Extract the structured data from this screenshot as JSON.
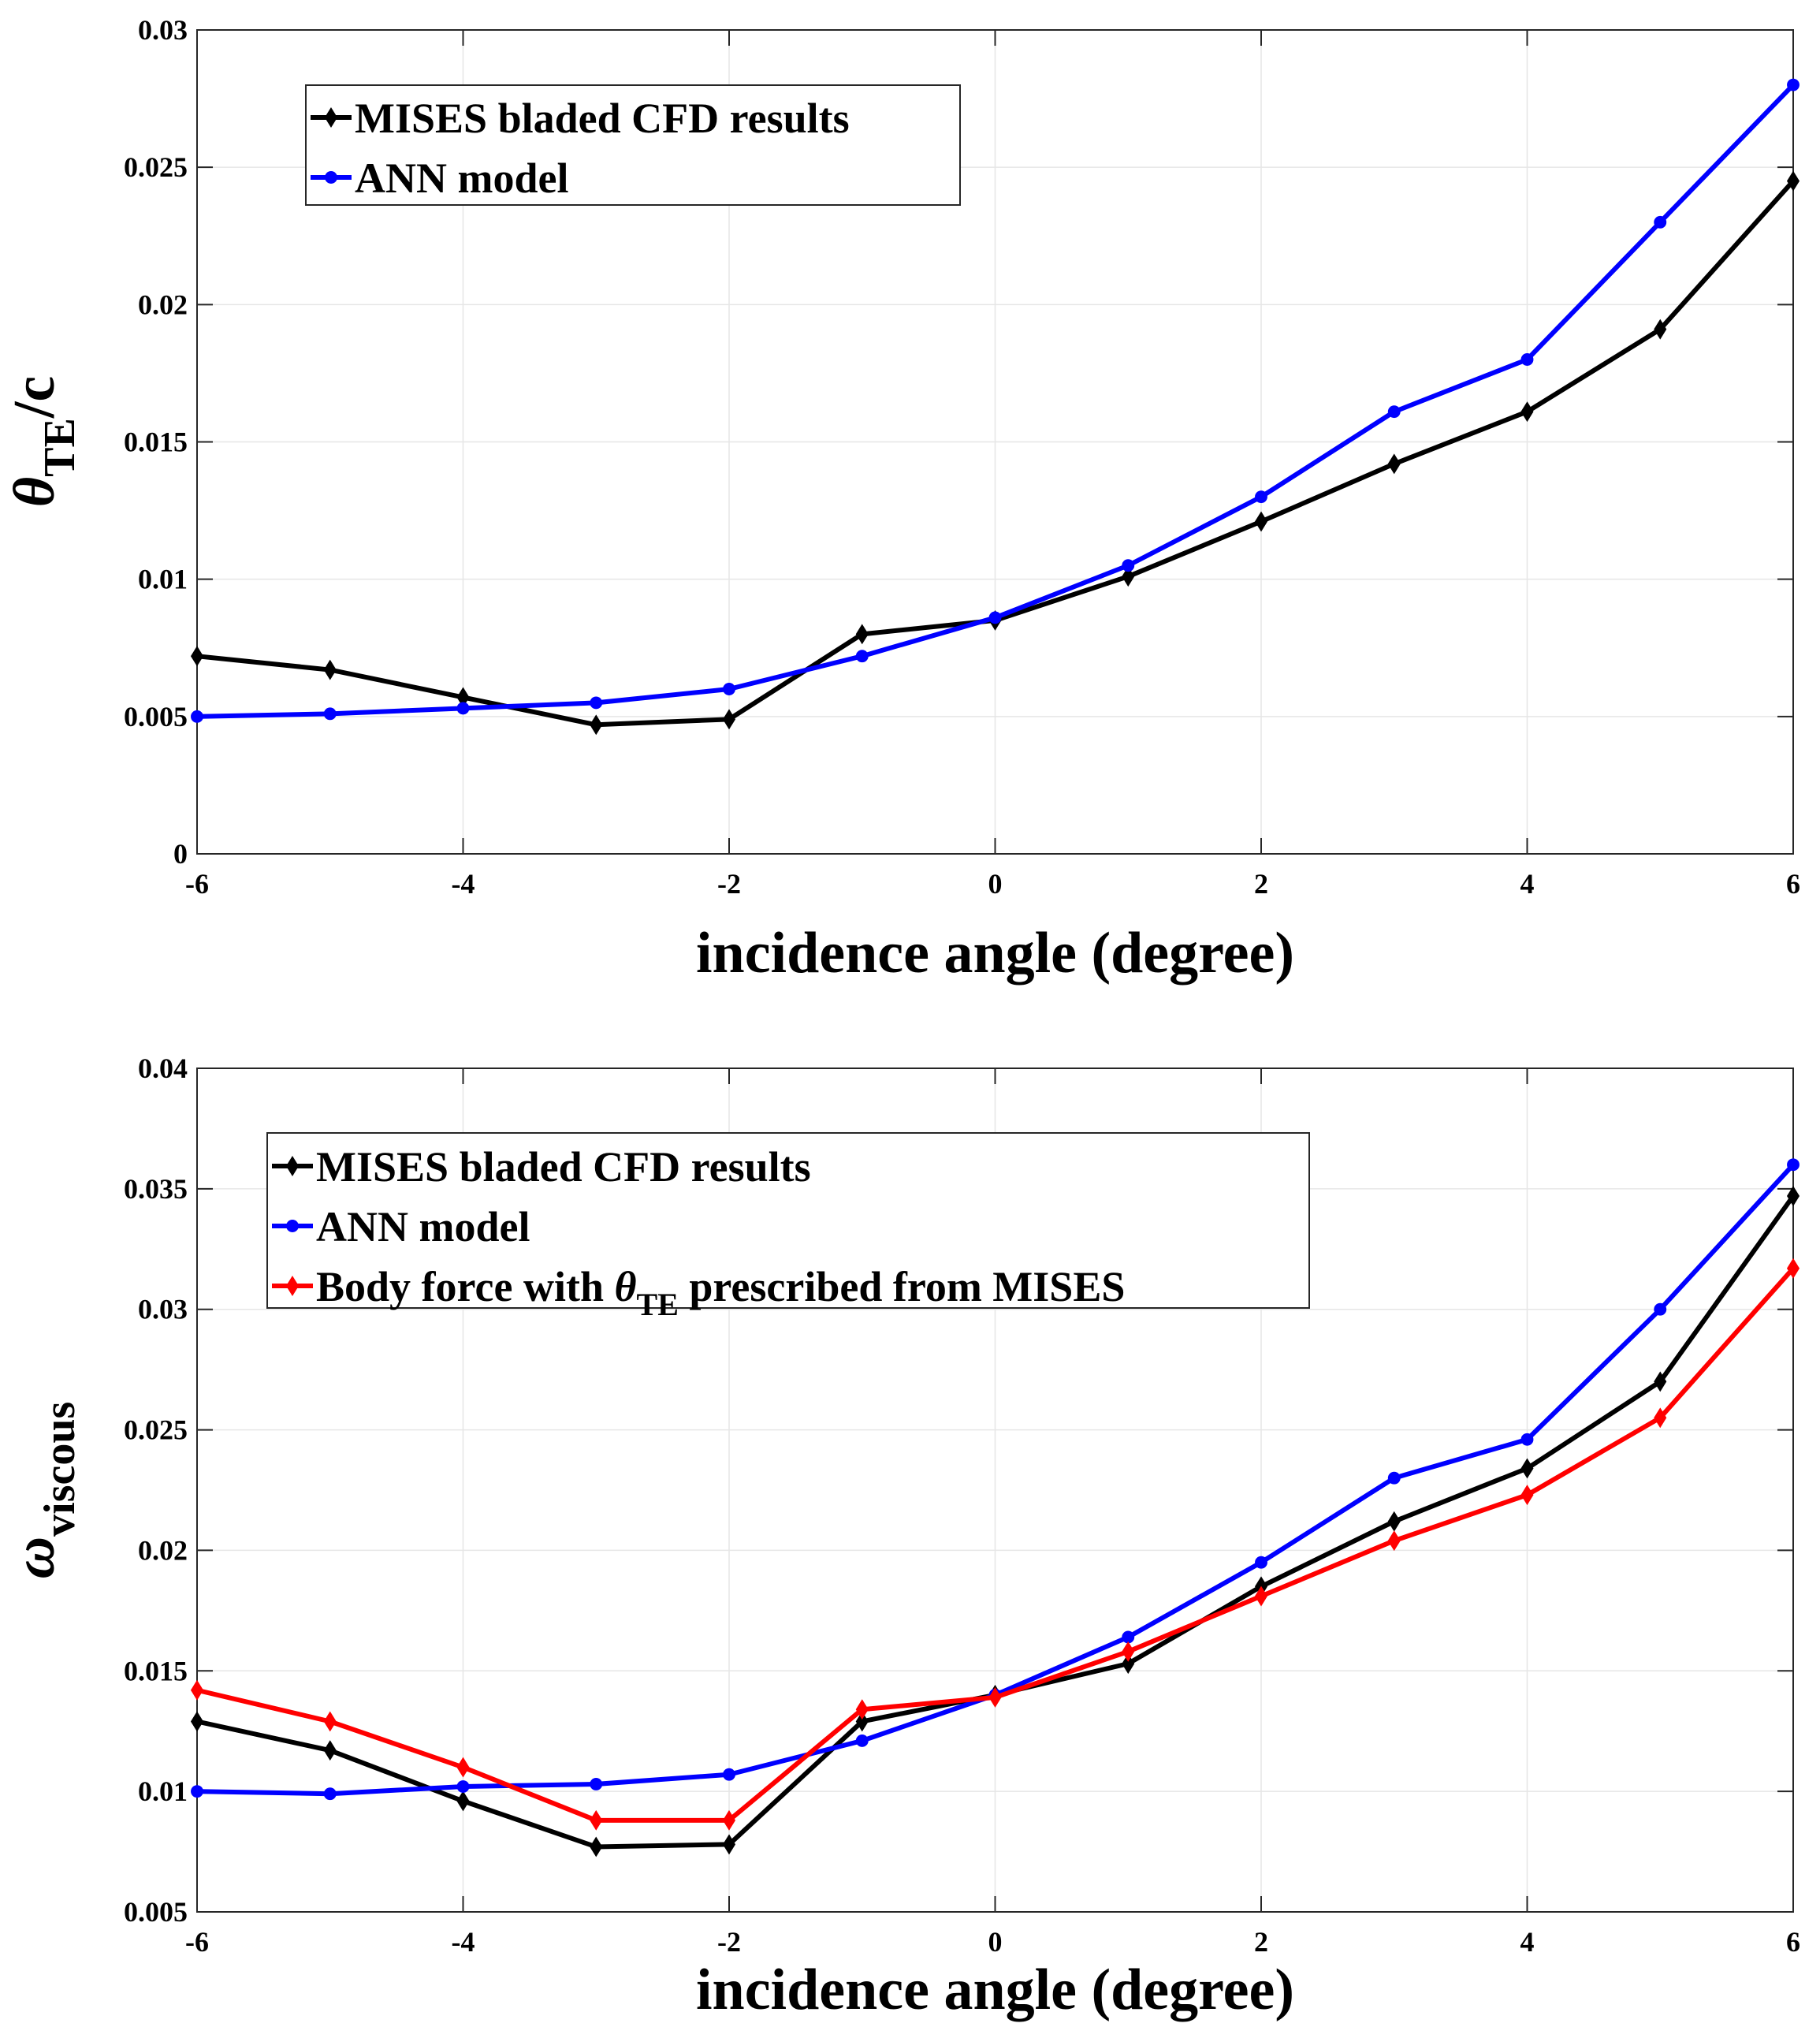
{
  "chart_data": [
    {
      "type": "line",
      "xlabel": "incidence angle (degree)",
      "ylabel": {
        "main": "θ",
        "sub": "TE",
        "tail": "/c"
      },
      "xlim": [
        -6,
        6
      ],
      "ylim": [
        0,
        0.03
      ],
      "grid": true,
      "legend_placement": "top-left",
      "x": [
        -6,
        -5,
        -4,
        -3,
        -2,
        -1,
        0,
        1,
        2,
        3,
        4,
        5,
        6
      ],
      "x_ticks": [
        -6,
        -4,
        -2,
        0,
        2,
        4,
        6
      ],
      "x_tick_labels": [
        "-6",
        "-4",
        "-2",
        "0",
        "2",
        "4",
        "6"
      ],
      "y_ticks": [
        0,
        0.005,
        0.01,
        0.015,
        0.02,
        0.025,
        0.03
      ],
      "y_tick_labels": [
        "0",
        "0.005",
        "0.01",
        "0.015",
        "0.02",
        "0.025",
        "0.03"
      ],
      "series": [
        {
          "name": "MISES bladed CFD results",
          "color": "#000000",
          "marker": "diamond",
          "values": [
            0.0072,
            0.0067,
            0.0057,
            0.0047,
            0.0049,
            0.008,
            0.0085,
            0.0101,
            0.0121,
            0.0142,
            0.0161,
            0.0191,
            0.0245
          ]
        },
        {
          "name": "ANN model",
          "color": "#0000ff",
          "marker": "circle",
          "values": [
            0.005,
            0.0051,
            0.0053,
            0.0055,
            0.006,
            0.0072,
            0.0086,
            0.0105,
            0.013,
            0.0161,
            0.018,
            0.023,
            0.028
          ]
        }
      ]
    },
    {
      "type": "line",
      "xlabel": "incidence angle (degree)",
      "ylabel": {
        "main": "ω",
        "sub": "viscous",
        "tail": ""
      },
      "xlim": [
        -6,
        6
      ],
      "ylim": [
        0.005,
        0.04
      ],
      "grid": true,
      "legend_placement": "top-left",
      "x": [
        -6,
        -5,
        -4,
        -3,
        -2,
        -1,
        0,
        1,
        2,
        3,
        4,
        5,
        6
      ],
      "x_ticks": [
        -6,
        -4,
        -2,
        0,
        2,
        4,
        6
      ],
      "x_tick_labels": [
        "-6",
        "-4",
        "-2",
        "0",
        "2",
        "4",
        "6"
      ],
      "y_ticks": [
        0.005,
        0.01,
        0.015,
        0.02,
        0.025,
        0.03,
        0.035,
        0.04
      ],
      "y_tick_labels": [
        "0.005",
        "0.01",
        "0.015",
        "0.02",
        "0.025",
        "0.03",
        "0.035",
        "0.04"
      ],
      "series": [
        {
          "name": "MISES bladed CFD results",
          "color": "#000000",
          "marker": "diamond",
          "values": [
            0.0129,
            0.0117,
            0.0096,
            0.0077,
            0.0078,
            0.0129,
            0.014,
            0.0153,
            0.0185,
            0.0212,
            0.0234,
            0.027,
            0.0347
          ]
        },
        {
          "name": "ANN model",
          "color": "#0000ff",
          "marker": "circle",
          "values": [
            0.01,
            0.0099,
            0.0102,
            0.0103,
            0.0107,
            0.0121,
            0.014,
            0.0164,
            0.0195,
            0.023,
            0.0246,
            0.03,
            0.036
          ]
        },
        {
          "name": "Body force with θTE prescribed from MISES",
          "name_parts": {
            "before": "Body force with ",
            "greek": "θ",
            "sub": "TE",
            "after": " prescribed from MISES"
          },
          "color": "#ff0000",
          "marker": "diamond",
          "values": [
            0.0142,
            0.0129,
            0.011,
            0.0088,
            0.0088,
            0.0134,
            0.0139,
            0.0158,
            0.0181,
            0.0204,
            0.0223,
            0.0255,
            0.0317
          ]
        }
      ]
    }
  ]
}
